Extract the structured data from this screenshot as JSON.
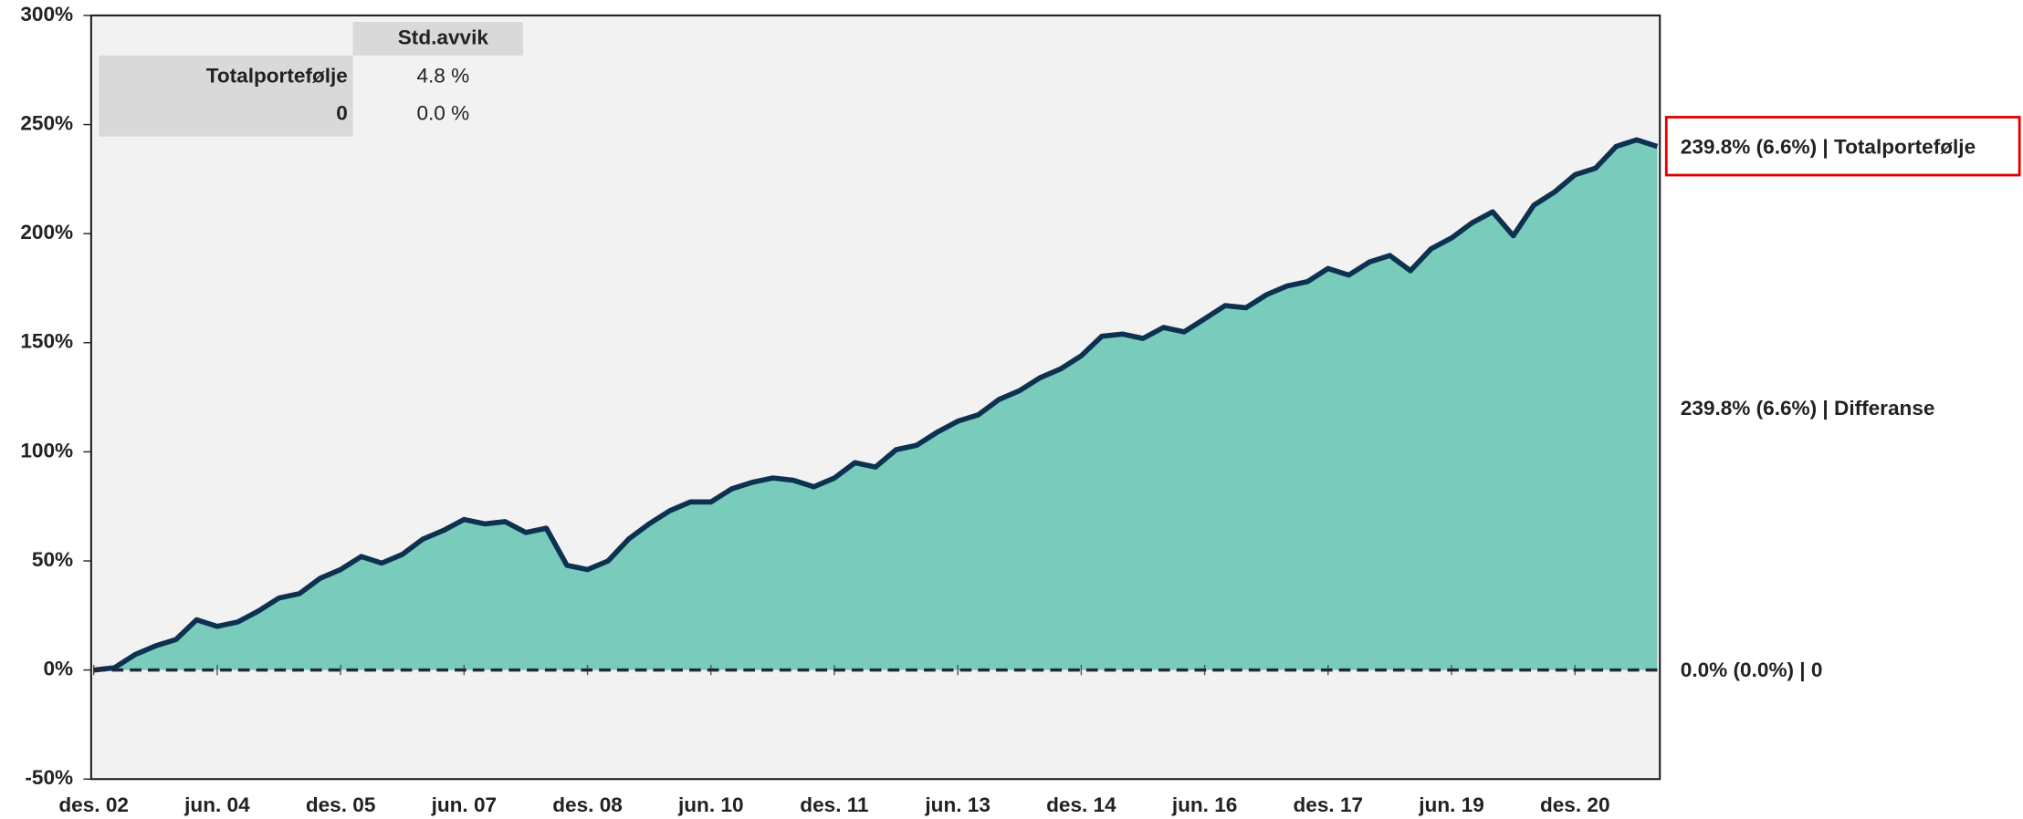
{
  "chart_data": {
    "type": "area",
    "categories": [
      "des. 02",
      null,
      null,
      null,
      null,
      null,
      "jun. 04",
      null,
      null,
      null,
      null,
      null,
      "des. 05",
      null,
      null,
      null,
      null,
      null,
      "jun. 07",
      null,
      null,
      null,
      null,
      null,
      "des. 08",
      null,
      null,
      null,
      null,
      null,
      "jun. 10",
      null,
      null,
      null,
      null,
      null,
      "des. 11",
      null,
      null,
      null,
      null,
      null,
      "jun. 13",
      null,
      null,
      null,
      null,
      null,
      "des. 14",
      null,
      null,
      null,
      null,
      null,
      "jun. 16",
      null,
      null,
      null,
      null,
      null,
      "des. 17",
      null,
      null,
      null,
      null,
      null,
      "jun. 19",
      null,
      null,
      null,
      null,
      null,
      "des. 20",
      null,
      null,
      null,
      null
    ],
    "series": [
      {
        "name": "Totalportefølje",
        "color": "#0d3151",
        "fill": "#79cbbb",
        "dashed": false,
        "values": [
          0,
          1,
          7,
          11,
          14,
          23,
          20,
          22,
          27,
          33,
          35,
          42,
          46,
          52,
          49,
          53,
          60,
          64,
          69,
          67,
          68,
          63,
          65,
          48,
          46,
          50,
          60,
          67,
          73,
          77,
          77,
          83,
          86,
          88,
          87,
          84,
          88,
          95,
          93,
          101,
          103,
          109,
          114,
          117,
          124,
          128,
          134,
          138,
          144,
          153,
          154,
          152,
          157,
          155,
          161,
          167,
          166,
          172,
          176,
          178,
          184,
          181,
          187,
          190,
          183,
          193,
          198,
          205,
          210,
          199,
          213,
          219,
          227,
          230,
          240,
          243,
          240
        ]
      },
      {
        "name": "0",
        "color": "#1f2a36",
        "fill": null,
        "dashed": true,
        "values": [
          0,
          0,
          0,
          0,
          0,
          0,
          0,
          0,
          0,
          0,
          0,
          0,
          0,
          0,
          0,
          0,
          0,
          0,
          0,
          0,
          0,
          0,
          0,
          0,
          0,
          0,
          0,
          0,
          0,
          0,
          0,
          0,
          0,
          0,
          0,
          0,
          0,
          0,
          0,
          0,
          0,
          0,
          0,
          0,
          0,
          0,
          0,
          0,
          0,
          0,
          0,
          0,
          0,
          0,
          0,
          0,
          0,
          0,
          0,
          0,
          0,
          0,
          0,
          0,
          0,
          0,
          0,
          0,
          0,
          0,
          0,
          0,
          0,
          0,
          0,
          0,
          0
        ]
      }
    ],
    "ylim": [
      -50,
      300
    ],
    "yticks": [
      {
        "value": -50,
        "label": "-50%"
      },
      {
        "value": 0,
        "label": "0%"
      },
      {
        "value": 50,
        "label": "50%"
      },
      {
        "value": 100,
        "label": "100%"
      },
      {
        "value": 150,
        "label": "150%"
      },
      {
        "value": 200,
        "label": "200%"
      },
      {
        "value": 250,
        "label": "250%"
      },
      {
        "value": 300,
        "label": "300%"
      }
    ],
    "background": "#f2f2f2",
    "annotations": [
      {
        "text": "239.8% (6.6%) | Totalportefølje",
        "color": "#0d3151",
        "y": 239.8,
        "box": "#e00000"
      },
      {
        "text": "239.8% (6.6%) | Differanse",
        "color": "#555555",
        "y": 120
      },
      {
        "text": "0.0% (0.0%) | 0",
        "color": "#1f2a36",
        "y": 0
      }
    ]
  },
  "table": {
    "header": "Std.avvik",
    "rows": [
      [
        "Totalportefølje",
        "4.8 %"
      ],
      [
        "0",
        "0.0 %"
      ]
    ]
  }
}
